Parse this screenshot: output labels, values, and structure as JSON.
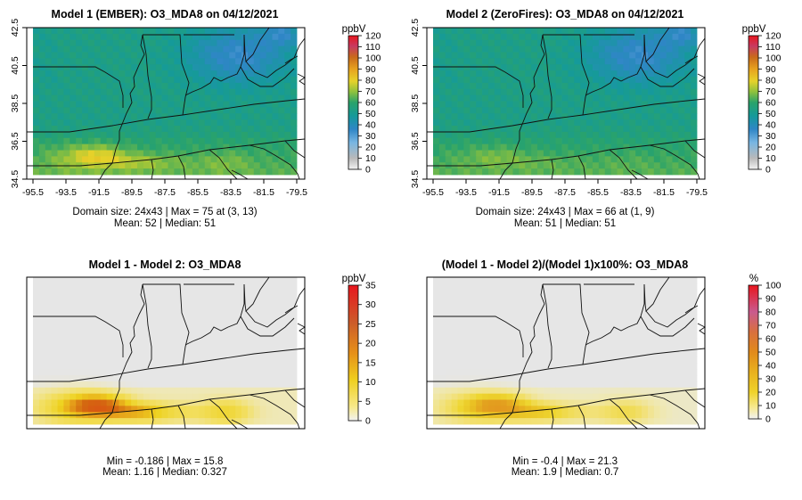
{
  "chart_data": [
    {
      "type": "heatmap",
      "title": "Model 1 (EMBER): O3_MDA8 on 04/12/2021",
      "x_ticks": [
        "-95.5",
        "-93.5",
        "-91.5",
        "-89.5",
        "-87.5",
        "-85.5",
        "-83.5",
        "-81.5",
        "-79.5"
      ],
      "y_ticks": [
        "34.5",
        "36.5",
        "38.5",
        "40.5",
        "42.5"
      ],
      "xlim": [
        -95.5,
        -79.5
      ],
      "ylim": [
        34.5,
        42.5
      ],
      "grid_size": [
        24,
        43
      ],
      "colorbar": {
        "unit": "ppbV",
        "min": 0,
        "max": 120,
        "ticks": [
          "0",
          "10",
          "20",
          "30",
          "40",
          "50",
          "60",
          "70",
          "80",
          "90",
          "100",
          "110",
          "120"
        ]
      },
      "stats": [
        "Domain size: 24x43 | Max = 75 at (3, 13)",
        "Mean: 52 |  Median: 51"
      ],
      "max": 75,
      "mean": 52,
      "median": 51
    },
    {
      "type": "heatmap",
      "title": "Model 2 (ZeroFires): O3_MDA8 on 04/12/2021",
      "x_ticks": [
        "-95.5",
        "-93.5",
        "-91.5",
        "-89.5",
        "-87.5",
        "-85.5",
        "-83.5",
        "-81.5",
        "-79.5"
      ],
      "y_ticks": [
        "34.5",
        "36.5",
        "38.5",
        "40.5",
        "42.5"
      ],
      "xlim": [
        -95.5,
        -79.5
      ],
      "ylim": [
        34.5,
        42.5
      ],
      "grid_size": [
        24,
        43
      ],
      "colorbar": {
        "unit": "ppbV",
        "min": 0,
        "max": 120,
        "ticks": [
          "0",
          "10",
          "20",
          "30",
          "40",
          "50",
          "60",
          "70",
          "80",
          "90",
          "100",
          "110",
          "120"
        ]
      },
      "stats": [
        "Domain size: 24x43 | Max = 66 at (1, 9)",
        "Mean: 51 |  Median: 51"
      ],
      "max": 66,
      "mean": 51,
      "median": 51
    },
    {
      "type": "heatmap",
      "title": "Model 1 - Model 2: O3_MDA8",
      "colorbar": {
        "unit": "ppbV",
        "min": 0,
        "max": 35,
        "ticks": [
          "0",
          "5",
          "10",
          "15",
          "20",
          "25",
          "30",
          "35"
        ]
      },
      "stats": [
        "Min = -0.186 | Max = 15.8",
        "Mean: 1.16 |  Median: 0.327"
      ],
      "min": -0.186,
      "max": 15.8,
      "mean": 1.16,
      "median": 0.327
    },
    {
      "type": "heatmap",
      "title": "(Model 1 - Model 2)/(Model 1)x100%: O3_MDA8",
      "colorbar": {
        "unit": "%",
        "min": 0,
        "max": 100,
        "ticks": [
          "0",
          "10",
          "20",
          "30",
          "40",
          "50",
          "60",
          "70",
          "80",
          "90",
          "100"
        ]
      },
      "stats": [
        "Min = -0.4 | Max = 21.3",
        "Mean: 1.9 |  Median: 0.7"
      ],
      "min": -0.4,
      "max": 21.3,
      "mean": 1.9,
      "median": 0.7
    }
  ]
}
